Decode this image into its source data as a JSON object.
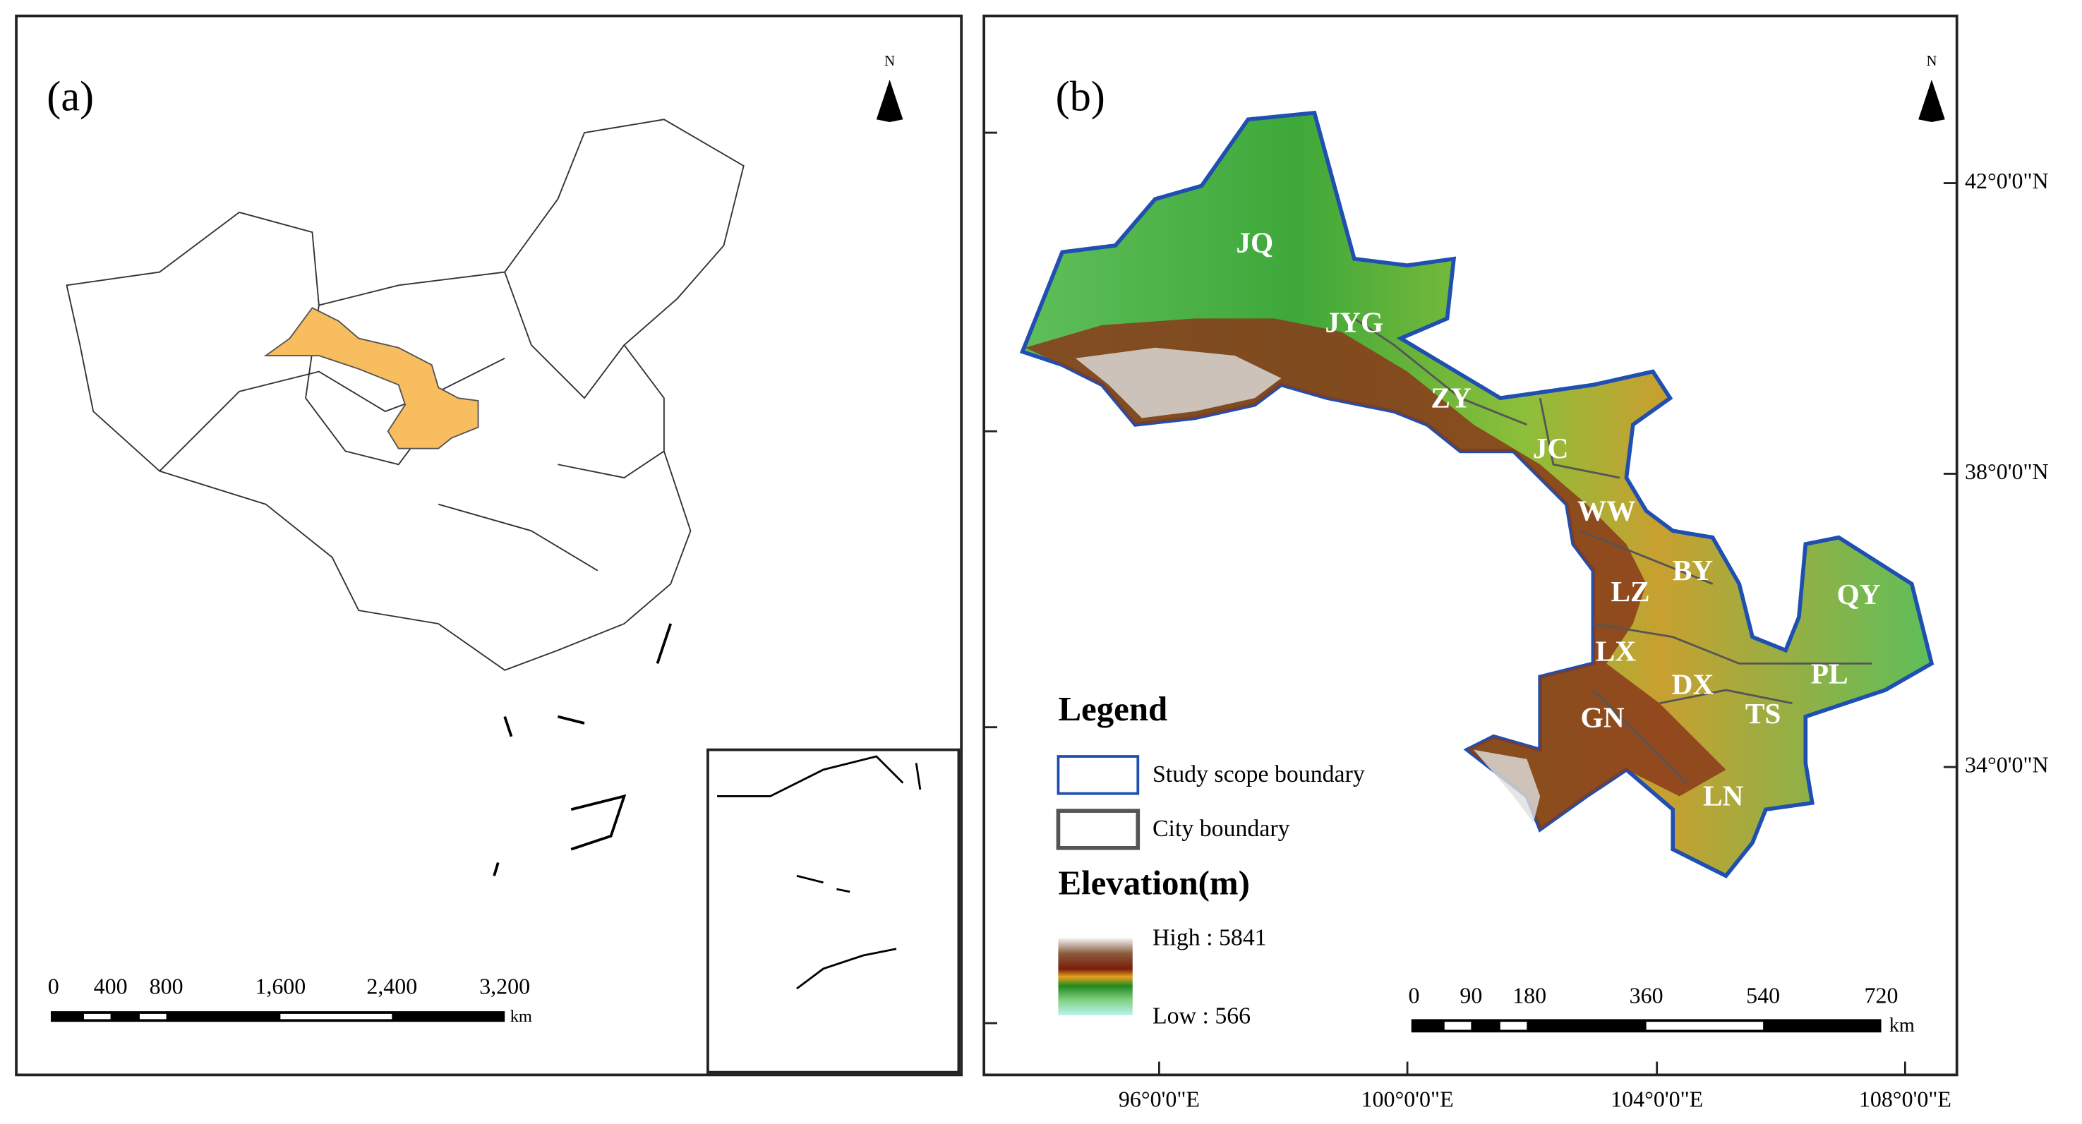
{
  "panel_a": {
    "label": "(a)",
    "north": "N",
    "scale_bar": {
      "ticks": [
        0,
        400,
        800,
        "1,600",
        "2,400",
        "3,200"
      ],
      "unit": "km"
    }
  },
  "panel_b": {
    "label": "(b)",
    "north": "N",
    "latitude_ticks": [
      "42°0'0\"N",
      "38°0'0\"N",
      "34°0'0\"N"
    ],
    "longitude_ticks": [
      "96°0'0\"E",
      "100°0'0\"E",
      "104°0'0\"E",
      "108°0'0\"E"
    ],
    "cities": [
      "JQ",
      "JYG",
      "ZY",
      "JC",
      "WW",
      "BY",
      "LZ",
      "QY",
      "LX",
      "DX",
      "PL",
      "GN",
      "TS",
      "LN"
    ],
    "legend": {
      "title": "Legend",
      "items": [
        "Study scope boundary",
        "City boundary"
      ],
      "elevation_title": "Elevation(m)",
      "high": "High : 5841",
      "low": "Low : 566"
    },
    "scale_bar": {
      "ticks": [
        0,
        90,
        180,
        360,
        540,
        720
      ],
      "unit": "km"
    }
  }
}
